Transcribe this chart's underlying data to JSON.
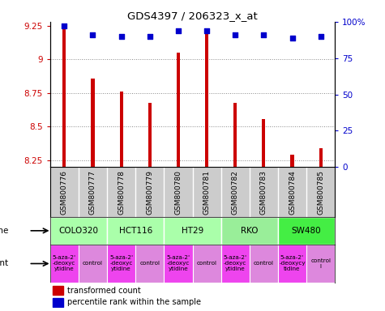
{
  "title": "GDS4397 / 206323_x_at",
  "samples": [
    "GSM800776",
    "GSM800777",
    "GSM800778",
    "GSM800779",
    "GSM800780",
    "GSM800781",
    "GSM800782",
    "GSM800783",
    "GSM800784",
    "GSM800785"
  ],
  "transformed_count": [
    9.24,
    8.86,
    8.76,
    8.68,
    9.05,
    9.2,
    8.68,
    8.56,
    8.29,
    8.34
  ],
  "percentile_rank": [
    97,
    91,
    90,
    90,
    94,
    94,
    91,
    91,
    89,
    90
  ],
  "bar_color": "#cc0000",
  "dot_color": "#0000cc",
  "ylim_left": [
    8.2,
    9.28
  ],
  "ylim_right": [
    0,
    100
  ],
  "yticks_left": [
    8.25,
    8.5,
    8.75,
    9.0,
    9.25
  ],
  "yticks_right": [
    0,
    25,
    50,
    75,
    100
  ],
  "ytick_labels_left": [
    "8.25",
    "8.5",
    "8.75",
    "9",
    "9.25"
  ],
  "ytick_labels_right": [
    "0",
    "25",
    "50",
    "75",
    "100%"
  ],
  "cell_lines": [
    {
      "name": "COLO320",
      "start": 0,
      "end": 2,
      "color": "#aaffaa"
    },
    {
      "name": "HCT116",
      "start": 2,
      "end": 4,
      "color": "#aaffaa"
    },
    {
      "name": "HT29",
      "start": 4,
      "end": 6,
      "color": "#aaffaa"
    },
    {
      "name": "RKO",
      "start": 6,
      "end": 8,
      "color": "#99ee99"
    },
    {
      "name": "SW480",
      "start": 8,
      "end": 10,
      "color": "#44ee44"
    }
  ],
  "agents": [
    {
      "name": "5-aza-2'\n-deoxyc\nytidine",
      "color": "#ee44ee",
      "start": 0,
      "end": 1
    },
    {
      "name": "control",
      "color": "#dd88dd",
      "start": 1,
      "end": 2
    },
    {
      "name": "5-aza-2'\n-deoxyc\nytidine",
      "color": "#ee44ee",
      "start": 2,
      "end": 3
    },
    {
      "name": "control",
      "color": "#dd88dd",
      "start": 3,
      "end": 4
    },
    {
      "name": "5-aza-2'\n-deoxyc\nytidine",
      "color": "#ee44ee",
      "start": 4,
      "end": 5
    },
    {
      "name": "control",
      "color": "#dd88dd",
      "start": 5,
      "end": 6
    },
    {
      "name": "5-aza-2'\n-deoxyc\nytidine",
      "color": "#ee44ee",
      "start": 6,
      "end": 7
    },
    {
      "name": "control",
      "color": "#dd88dd",
      "start": 7,
      "end": 8
    },
    {
      "name": "5-aza-2'\n-deoxycy\ntidine",
      "color": "#ee44ee",
      "start": 8,
      "end": 9
    },
    {
      "name": "control\nl",
      "color": "#dd88dd",
      "start": 9,
      "end": 10
    }
  ],
  "bg_color": "#ffffff",
  "grid_color": "#888888",
  "tick_color_left": "#cc0000",
  "tick_color_right": "#0000cc",
  "sample_bg": "#cccccc",
  "bar_bottom": 8.2,
  "bar_width": 0.12
}
